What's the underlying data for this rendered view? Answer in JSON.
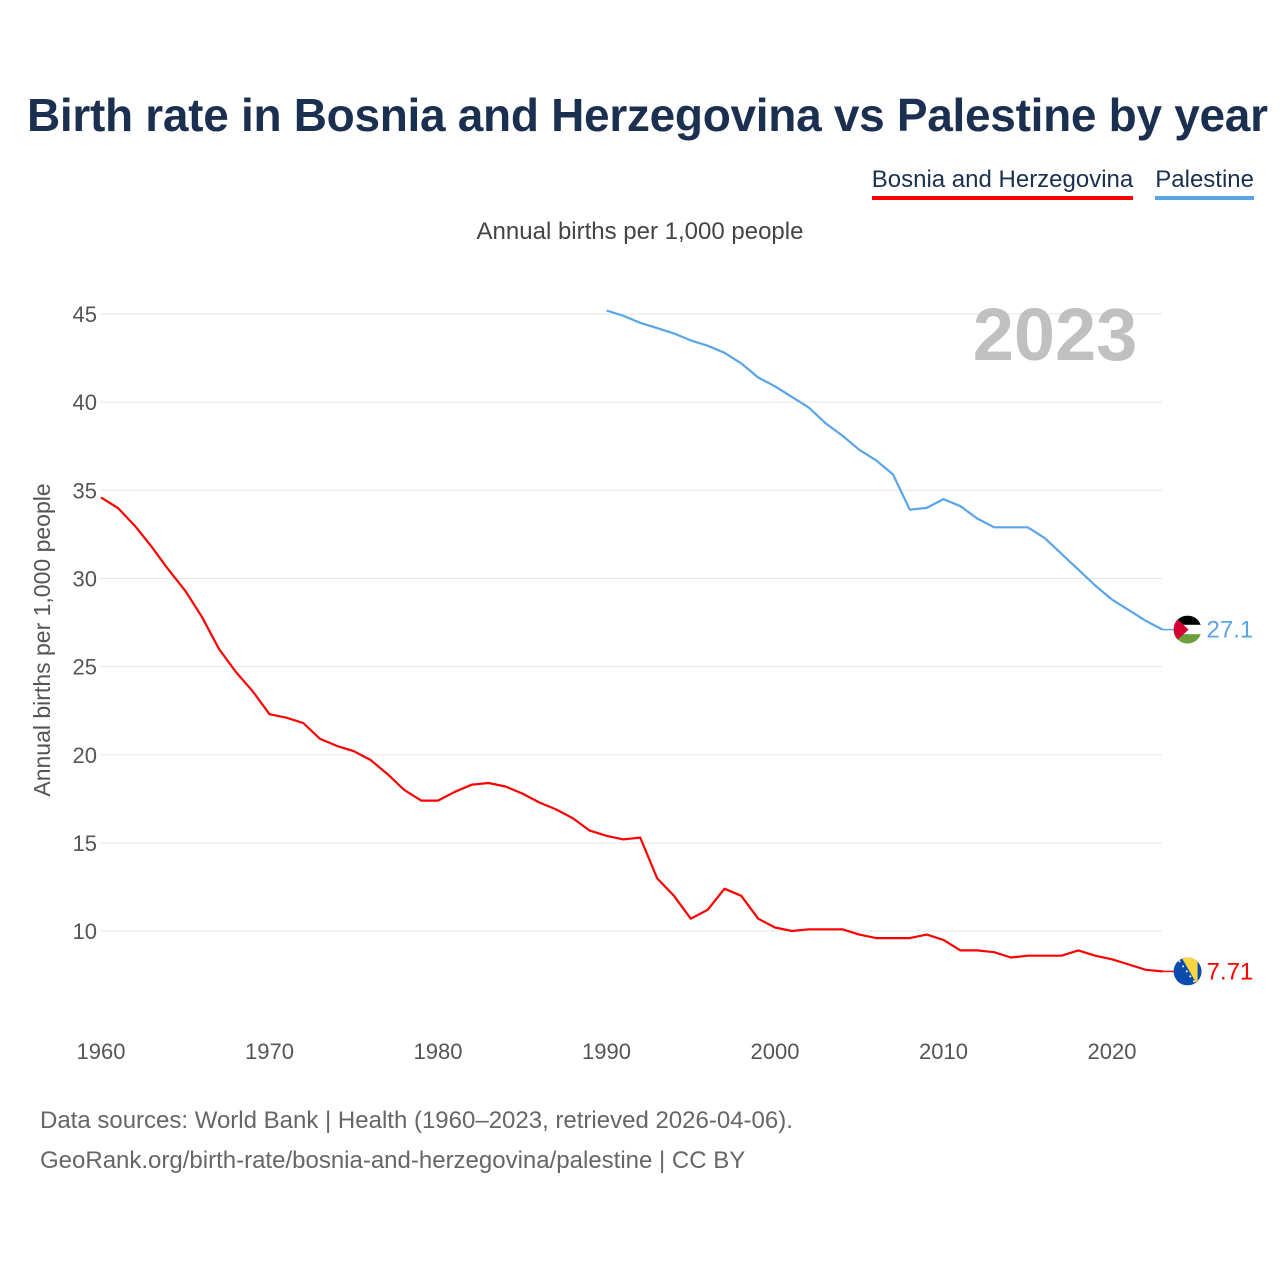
{
  "title": "Birth rate in Bosnia and Herzegovina vs Palestine by year",
  "legend": [
    {
      "label": "Bosnia and Herzegovina",
      "color": "#ff0000"
    },
    {
      "label": "Palestine",
      "color": "#5aa5e8"
    }
  ],
  "subtitle": "Annual births per 1,000 people",
  "year_watermark": "2023",
  "footer": {
    "line1": "Data sources: World Bank | Health (1960–2023, retrieved 2026-04-06).",
    "line2": "GeoRank.org/birth-rate/bosnia-and-herzegovina/palestine | CC BY"
  },
  "chart_data": {
    "type": "line",
    "title": "Birth rate in Bosnia and Herzegovina vs Palestine by year",
    "xlabel": "",
    "ylabel": "Annual births per 1,000 people",
    "xlim": [
      1960,
      2023
    ],
    "ylim": [
      5,
      46
    ],
    "x_ticks": [
      "1960",
      "1970",
      "1980",
      "1990",
      "2000",
      "2010",
      "2020"
    ],
    "y_ticks": [
      "10",
      "15",
      "20",
      "25",
      "30",
      "35",
      "40",
      "45"
    ],
    "grid": true,
    "legend_position": "top-right",
    "series": [
      {
        "name": "Bosnia and Herzegovina",
        "color": "#ff0000",
        "start_year": 1960,
        "end_label": "7.71",
        "values": [
          34.6,
          34.0,
          33.0,
          31.8,
          30.5,
          29.3,
          27.8,
          26.0,
          24.7,
          23.6,
          22.3,
          22.1,
          21.8,
          20.9,
          20.5,
          20.2,
          19.7,
          18.9,
          18.0,
          17.4,
          17.4,
          17.9,
          18.3,
          18.4,
          18.2,
          17.8,
          17.3,
          16.9,
          16.4,
          15.7,
          15.4,
          15.2,
          15.3,
          13.0,
          12.0,
          10.7,
          11.2,
          12.4,
          12.0,
          10.7,
          10.2,
          10.0,
          10.1,
          10.1,
          10.1,
          9.8,
          9.6,
          9.6,
          9.6,
          9.8,
          9.5,
          8.9,
          8.9,
          8.8,
          8.5,
          8.6,
          8.6,
          8.6,
          8.9,
          8.6,
          8.4,
          8.1,
          7.8,
          7.71
        ]
      },
      {
        "name": "Palestine",
        "color": "#5aa5e8",
        "start_year": 1990,
        "end_label": "27.1",
        "values": [
          45.2,
          44.9,
          44.5,
          44.2,
          43.9,
          43.5,
          43.2,
          42.8,
          42.2,
          41.4,
          40.9,
          40.3,
          39.7,
          38.8,
          38.1,
          37.3,
          36.7,
          35.9,
          33.9,
          34.0,
          34.5,
          34.1,
          33.4,
          32.9,
          32.9,
          32.9,
          32.3,
          31.4,
          30.5,
          29.6,
          28.8,
          28.2,
          27.6,
          27.1
        ]
      }
    ]
  }
}
